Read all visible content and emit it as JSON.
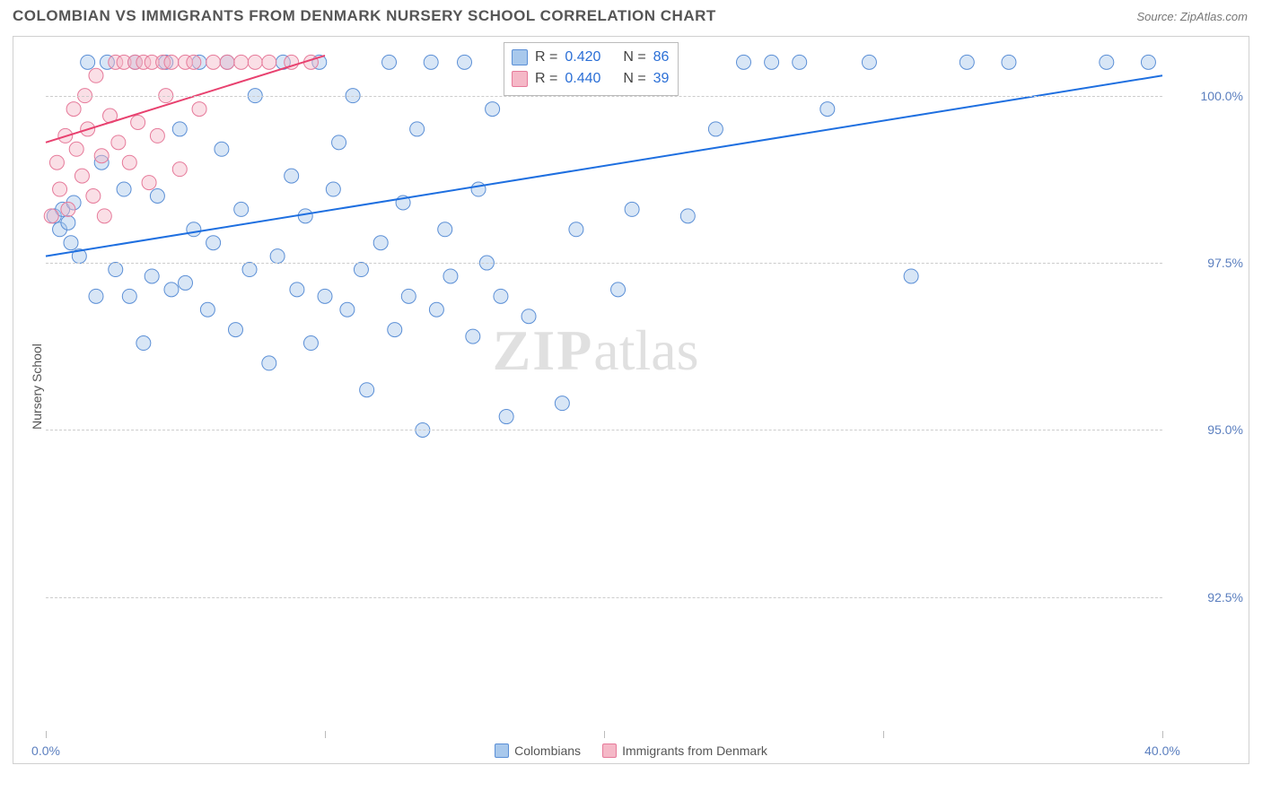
{
  "header": {
    "title": "COLOMBIAN VS IMMIGRANTS FROM DENMARK NURSERY SCHOOL CORRELATION CHART",
    "source_prefix": "Source: ",
    "source_name": "ZipAtlas.com"
  },
  "chart": {
    "type": "scatter",
    "ylabel": "Nursery School",
    "x_domain": [
      0,
      40
    ],
    "y_domain": [
      90.5,
      100.8
    ],
    "x_ticks": [
      0,
      10,
      20,
      30,
      40
    ],
    "x_tick_labels": {
      "0": "0.0%",
      "40": "40.0%"
    },
    "y_ticks": [
      92.5,
      95.0,
      97.5,
      100.0
    ],
    "y_tick_labels": [
      "92.5%",
      "95.0%",
      "97.5%",
      "100.0%"
    ],
    "grid_color": "#cccccc",
    "background_color": "#ffffff",
    "border_color": "#d0d0d0",
    "marker_radius": 8,
    "marker_opacity": 0.45,
    "line_width": 2,
    "watermark": {
      "zip": "ZIP",
      "atlas": "atlas"
    },
    "series": [
      {
        "name": "Colombians",
        "color_fill": "#a8c8ec",
        "color_stroke": "#5b8fd6",
        "line_color": "#1e6fe0",
        "R": "0.420",
        "N": "86",
        "trend": {
          "x1": 0,
          "y1": 97.6,
          "x2": 40,
          "y2": 100.3
        },
        "points": [
          [
            0.3,
            98.2
          ],
          [
            0.5,
            98.0
          ],
          [
            0.6,
            98.3
          ],
          [
            0.8,
            98.1
          ],
          [
            0.9,
            97.8
          ],
          [
            1.0,
            98.4
          ],
          [
            1.2,
            97.6
          ],
          [
            1.5,
            100.5
          ],
          [
            1.8,
            97.0
          ],
          [
            2.0,
            99.0
          ],
          [
            2.2,
            100.5
          ],
          [
            2.5,
            97.4
          ],
          [
            2.8,
            98.6
          ],
          [
            3.0,
            97.0
          ],
          [
            3.2,
            100.5
          ],
          [
            3.5,
            96.3
          ],
          [
            3.8,
            97.3
          ],
          [
            4.0,
            98.5
          ],
          [
            4.3,
            100.5
          ],
          [
            4.5,
            97.1
          ],
          [
            4.8,
            99.5
          ],
          [
            5.0,
            97.2
          ],
          [
            5.3,
            98.0
          ],
          [
            5.5,
            100.5
          ],
          [
            5.8,
            96.8
          ],
          [
            6.0,
            97.8
          ],
          [
            6.3,
            99.2
          ],
          [
            6.5,
            100.5
          ],
          [
            6.8,
            96.5
          ],
          [
            7.0,
            98.3
          ],
          [
            7.3,
            97.4
          ],
          [
            7.5,
            100.0
          ],
          [
            8.0,
            96.0
          ],
          [
            8.3,
            97.6
          ],
          [
            8.5,
            100.5
          ],
          [
            8.8,
            98.8
          ],
          [
            9.0,
            97.1
          ],
          [
            9.3,
            98.2
          ],
          [
            9.5,
            96.3
          ],
          [
            9.8,
            100.5
          ],
          [
            10.0,
            97.0
          ],
          [
            10.3,
            98.6
          ],
          [
            10.5,
            99.3
          ],
          [
            10.8,
            96.8
          ],
          [
            11.0,
            100.0
          ],
          [
            11.3,
            97.4
          ],
          [
            11.5,
            95.6
          ],
          [
            12.0,
            97.8
          ],
          [
            12.3,
            100.5
          ],
          [
            12.5,
            96.5
          ],
          [
            12.8,
            98.4
          ],
          [
            13.0,
            97.0
          ],
          [
            13.3,
            99.5
          ],
          [
            13.5,
            95.0
          ],
          [
            13.8,
            100.5
          ],
          [
            14.0,
            96.8
          ],
          [
            14.3,
            98.0
          ],
          [
            14.5,
            97.3
          ],
          [
            15.0,
            100.5
          ],
          [
            15.3,
            96.4
          ],
          [
            15.5,
            98.6
          ],
          [
            15.8,
            97.5
          ],
          [
            16.0,
            99.8
          ],
          [
            16.3,
            97.0
          ],
          [
            16.5,
            95.2
          ],
          [
            17.0,
            100.5
          ],
          [
            17.3,
            96.7
          ],
          [
            18.0,
            100.5
          ],
          [
            18.5,
            95.4
          ],
          [
            19.0,
            98.0
          ],
          [
            20.0,
            100.5
          ],
          [
            20.5,
            97.1
          ],
          [
            21.0,
            98.3
          ],
          [
            22.0,
            100.5
          ],
          [
            23.0,
            98.2
          ],
          [
            24.0,
            99.5
          ],
          [
            25.0,
            100.5
          ],
          [
            26.0,
            100.5
          ],
          [
            27.0,
            100.5
          ],
          [
            28.0,
            99.8
          ],
          [
            29.5,
            100.5
          ],
          [
            31.0,
            97.3
          ],
          [
            33.0,
            100.5
          ],
          [
            34.5,
            100.5
          ],
          [
            38.0,
            100.5
          ],
          [
            39.5,
            100.5
          ]
        ]
      },
      {
        "name": "Immigrants from Denmark",
        "color_fill": "#f5b8c7",
        "color_stroke": "#e67a9a",
        "line_color": "#e8416f",
        "R": "0.440",
        "N": "39",
        "trend": {
          "x1": 0,
          "y1": 99.3,
          "x2": 10,
          "y2": 100.6
        },
        "points": [
          [
            0.2,
            98.2
          ],
          [
            0.4,
            99.0
          ],
          [
            0.5,
            98.6
          ],
          [
            0.7,
            99.4
          ],
          [
            0.8,
            98.3
          ],
          [
            1.0,
            99.8
          ],
          [
            1.1,
            99.2
          ],
          [
            1.3,
            98.8
          ],
          [
            1.4,
            100.0
          ],
          [
            1.5,
            99.5
          ],
          [
            1.7,
            98.5
          ],
          [
            1.8,
            100.3
          ],
          [
            2.0,
            99.1
          ],
          [
            2.1,
            98.2
          ],
          [
            2.3,
            99.7
          ],
          [
            2.5,
            100.5
          ],
          [
            2.6,
            99.3
          ],
          [
            2.8,
            100.5
          ],
          [
            3.0,
            99.0
          ],
          [
            3.2,
            100.5
          ],
          [
            3.3,
            99.6
          ],
          [
            3.5,
            100.5
          ],
          [
            3.7,
            98.7
          ],
          [
            3.8,
            100.5
          ],
          [
            4.0,
            99.4
          ],
          [
            4.2,
            100.5
          ],
          [
            4.3,
            100.0
          ],
          [
            4.5,
            100.5
          ],
          [
            4.8,
            98.9
          ],
          [
            5.0,
            100.5
          ],
          [
            5.3,
            100.5
          ],
          [
            5.5,
            99.8
          ],
          [
            6.0,
            100.5
          ],
          [
            6.5,
            100.5
          ],
          [
            7.0,
            100.5
          ],
          [
            7.5,
            100.5
          ],
          [
            8.0,
            100.5
          ],
          [
            8.8,
            100.5
          ],
          [
            9.5,
            100.5
          ]
        ]
      }
    ],
    "stats_box": {
      "R_label": "R  =",
      "N_label": "N  ="
    },
    "legend_text": [
      "Colombians",
      "Immigrants from Denmark"
    ]
  }
}
